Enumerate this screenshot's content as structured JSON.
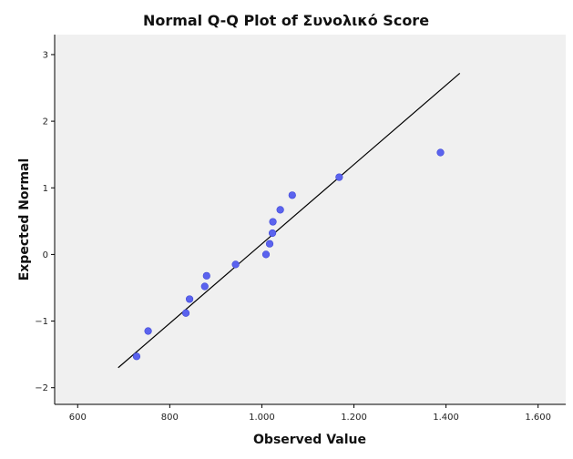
{
  "chart_data": {
    "type": "scatter",
    "title": "Normal Q-Q Plot of Συνολικό Score",
    "xlabel": "Observed Value",
    "ylabel": "Expected Normal",
    "xlim": [
      550,
      1660
    ],
    "ylim": [
      -2.25,
      3.3
    ],
    "x_ticks": [
      600,
      800,
      1000,
      1200,
      1400,
      1600
    ],
    "x_tick_labels": [
      "600",
      "800",
      "1.000",
      "1.200",
      "1.400",
      "1.600"
    ],
    "y_ticks": [
      -2,
      -1,
      0,
      1,
      2,
      3
    ],
    "y_tick_labels": [
      "−2",
      "−1",
      "0",
      "1",
      "2",
      "3"
    ],
    "grid": false,
    "legend": "none",
    "points": [
      {
        "x": 728,
        "y": -1.53
      },
      {
        "x": 753,
        "y": -1.15
      },
      {
        "x": 835,
        "y": -0.88
      },
      {
        "x": 843,
        "y": -0.67
      },
      {
        "x": 876,
        "y": -0.48
      },
      {
        "x": 880,
        "y": -0.32
      },
      {
        "x": 943,
        "y": -0.15
      },
      {
        "x": 1009,
        "y": 0.0
      },
      {
        "x": 1017,
        "y": 0.16
      },
      {
        "x": 1023,
        "y": 0.32
      },
      {
        "x": 1024,
        "y": 0.49
      },
      {
        "x": 1040,
        "y": 0.67
      },
      {
        "x": 1066,
        "y": 0.89
      },
      {
        "x": 1168,
        "y": 1.16
      },
      {
        "x": 1388,
        "y": 1.53
      }
    ],
    "reference_line": [
      {
        "x": 688,
        "y": -1.7
      },
      {
        "x": 1430,
        "y": 2.72
      }
    ],
    "colors": {
      "plot_background": "#f0f0f0",
      "point": "#5b63ee",
      "point_stroke": "#3f48d8",
      "line": "#000000",
      "axis": "#000000"
    }
  }
}
